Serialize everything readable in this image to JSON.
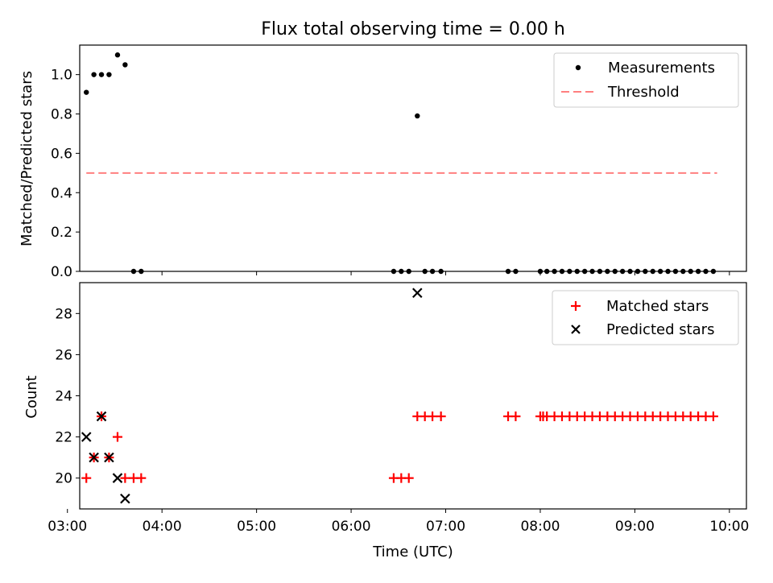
{
  "title": "Flux total observing time = 0.00 h",
  "colors": {
    "measurement": "#000000",
    "threshold": "#ff7f7f",
    "matched": "#ff0000",
    "predicted": "#000000",
    "axis": "#000000"
  },
  "chart_data": [
    {
      "type": "scatter",
      "ylabel": "Matched/Predicted stars",
      "ylim": [
        0,
        1.15
      ],
      "xlim": [
        3.13,
        10.18
      ],
      "yticks": [
        0.0,
        0.2,
        0.4,
        0.6,
        0.8,
        1.0
      ],
      "ytick_labels": [
        "0.0",
        "0.2",
        "0.4",
        "0.6",
        "0.8",
        "1.0"
      ],
      "legend": [
        "Measurements",
        "Threshold"
      ],
      "legend_position": "top-right",
      "threshold": {
        "name": "Threshold",
        "value": 0.5,
        "x_range": [
          3.2,
          9.87
        ]
      },
      "series": [
        {
          "name": "Measurements",
          "x": [
            3.2,
            3.28,
            3.36,
            3.44,
            3.53,
            3.61,
            3.7,
            3.78,
            6.45,
            6.53,
            6.61,
            6.7,
            6.78,
            6.86,
            6.95,
            7.66,
            7.74,
            8.0,
            8.07,
            8.15,
            8.23,
            8.31,
            8.39,
            8.47,
            8.55,
            8.63,
            8.71,
            8.79,
            8.87,
            8.95,
            9.03,
            9.11,
            9.19,
            9.27,
            9.35,
            9.43,
            9.51,
            9.59,
            9.67,
            9.75,
            9.83
          ],
          "y": [
            0.91,
            1.0,
            1.0,
            1.0,
            1.1,
            1.05,
            0,
            0,
            0,
            0,
            0,
            0.79,
            0,
            0,
            0,
            0,
            0,
            0,
            0,
            0,
            0,
            0,
            0,
            0,
            0,
            0,
            0,
            0,
            0,
            0,
            0,
            0,
            0,
            0,
            0,
            0,
            0,
            0,
            0,
            0,
            0
          ]
        }
      ]
    },
    {
      "type": "scatter",
      "title": "",
      "ylabel": "Count",
      "xlabel": "Time (UTC)",
      "ylim": [
        18.5,
        29.5
      ],
      "xlim": [
        3.13,
        10.18
      ],
      "yticks": [
        20,
        22,
        24,
        26,
        28
      ],
      "ytick_labels": [
        "20",
        "22",
        "24",
        "26",
        "28"
      ],
      "xticks": [
        3,
        4,
        5,
        6,
        7,
        8,
        9,
        10
      ],
      "xtick_labels": [
        "03:00",
        "04:00",
        "05:00",
        "06:00",
        "07:00",
        "08:00",
        "09:00",
        "10:00"
      ],
      "legend": [
        "Matched stars",
        "Predicted stars"
      ],
      "legend_position": "top-right",
      "series": [
        {
          "name": "Matched stars",
          "x": [
            3.2,
            3.28,
            3.36,
            3.44,
            3.53,
            3.61,
            3.7,
            3.78,
            6.45,
            6.53,
            6.61,
            6.7,
            6.78,
            6.86,
            6.95,
            7.66,
            7.74,
            8.0,
            8.03,
            8.07,
            8.15,
            8.23,
            8.31,
            8.39,
            8.47,
            8.55,
            8.63,
            8.71,
            8.79,
            8.87,
            8.95,
            9.03,
            9.11,
            9.19,
            9.27,
            9.35,
            9.43,
            9.51,
            9.59,
            9.67,
            9.75,
            9.83
          ],
          "y": [
            20,
            21,
            23,
            21,
            22,
            20,
            20,
            20,
            20,
            20,
            20,
            23,
            23,
            23,
            23,
            23,
            23,
            23,
            23,
            23,
            23,
            23,
            23,
            23,
            23,
            23,
            23,
            23,
            23,
            23,
            23,
            23,
            23,
            23,
            23,
            23,
            23,
            23,
            23,
            23,
            23,
            23
          ]
        },
        {
          "name": "Predicted stars",
          "x": [
            3.2,
            3.28,
            3.36,
            3.44,
            3.53,
            3.61,
            6.7
          ],
          "y": [
            22,
            21,
            23,
            21,
            20,
            19,
            29
          ]
        }
      ]
    }
  ]
}
